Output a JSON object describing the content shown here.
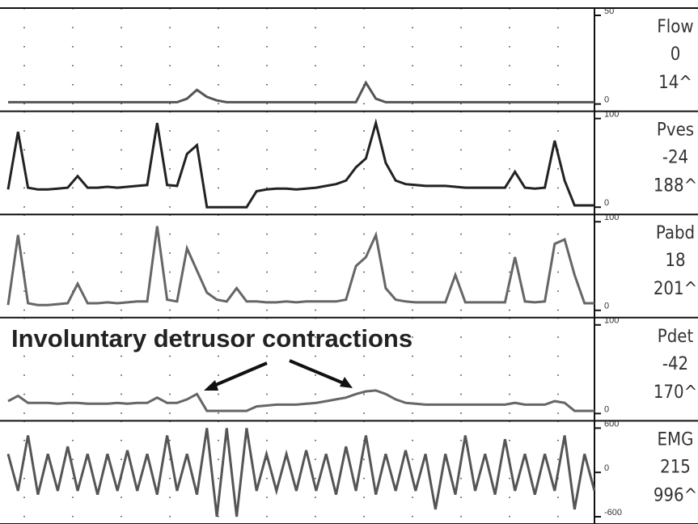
{
  "chart_data": [
    {
      "type": "line",
      "label": "Flow",
      "current": "0",
      "max": "14^",
      "color": "#555",
      "ylim": [
        0,
        50
      ],
      "yticks": [
        0,
        50
      ],
      "values": [
        1,
        1,
        1,
        1,
        1,
        1,
        1,
        1,
        1,
        1,
        1,
        1,
        1,
        1,
        1,
        1,
        1,
        1,
        3,
        8,
        4,
        2,
        1,
        1,
        1,
        1,
        1,
        1,
        1,
        1,
        1,
        1,
        1,
        1,
        1,
        1,
        12,
        3,
        1,
        1,
        1,
        1,
        1,
        1,
        1,
        1,
        1,
        1,
        1,
        1,
        1,
        1,
        1,
        1,
        1,
        1,
        1,
        1,
        1,
        1
      ]
    },
    {
      "type": "line",
      "label": "Pves",
      "current": "-24",
      "max": "188^",
      "color": "#222",
      "ylim": [
        0,
        100
      ],
      "yticks": [
        0,
        100
      ],
      "values": [
        20,
        85,
        22,
        20,
        20,
        21,
        22,
        35,
        22,
        22,
        23,
        22,
        23,
        24,
        25,
        95,
        25,
        24,
        60,
        70,
        0,
        0,
        0,
        0,
        0,
        18,
        20,
        21,
        21,
        20,
        21,
        22,
        24,
        26,
        30,
        45,
        55,
        95,
        50,
        30,
        26,
        25,
        24,
        24,
        24,
        23,
        22,
        22,
        22,
        22,
        22,
        40,
        22,
        21,
        22,
        75,
        30,
        2,
        2,
        2
      ]
    },
    {
      "type": "line",
      "label": "Pabd",
      "current": "18",
      "max": "201^",
      "color": "#666",
      "ylim": [
        0,
        100
      ],
      "yticks": [
        0,
        100
      ],
      "values": [
        6,
        85,
        8,
        6,
        6,
        7,
        8,
        30,
        8,
        8,
        9,
        8,
        9,
        10,
        10,
        95,
        12,
        10,
        70,
        45,
        20,
        12,
        10,
        25,
        10,
        10,
        9,
        9,
        10,
        9,
        10,
        10,
        10,
        10,
        12,
        50,
        60,
        85,
        25,
        12,
        10,
        9,
        9,
        9,
        9,
        40,
        9,
        9,
        9,
        9,
        9,
        60,
        10,
        9,
        10,
        75,
        80,
        40,
        8,
        8
      ]
    },
    {
      "type": "line",
      "label": "Pdet",
      "current": "-42",
      "max": "170^",
      "color": "#666",
      "ylim": [
        0,
        100
      ],
      "yticks": [
        0,
        100
      ],
      "values": [
        14,
        20,
        12,
        12,
        12,
        11,
        12,
        12,
        11,
        11,
        11,
        12,
        11,
        12,
        12,
        18,
        12,
        12,
        16,
        22,
        3,
        3,
        3,
        3,
        3,
        8,
        9,
        10,
        10,
        10,
        11,
        12,
        14,
        16,
        18,
        22,
        25,
        26,
        22,
        16,
        12,
        11,
        10,
        10,
        10,
        10,
        10,
        10,
        10,
        10,
        10,
        12,
        10,
        10,
        10,
        14,
        12,
        3,
        3,
        3
      ]
    },
    {
      "type": "line",
      "label": "EMG",
      "current": "215",
      "max": "996^",
      "color": "#555",
      "ylim": [
        -600,
        600
      ],
      "yticks": [
        -600,
        0,
        600
      ],
      "values": [
        250,
        -250,
        500,
        -300,
        250,
        -250,
        350,
        -250,
        250,
        -300,
        250,
        -250,
        300,
        -250,
        250,
        -300,
        500,
        -250,
        250,
        -300,
        600,
        -600,
        600,
        -600,
        600,
        -250,
        250,
        -250,
        250,
        -250,
        300,
        -250,
        250,
        -300,
        350,
        -250,
        500,
        -300,
        250,
        -250,
        300,
        -250,
        250,
        -500,
        250,
        -300,
        500,
        -250,
        250,
        -300,
        450,
        -250,
        250,
        -300,
        250,
        -250,
        500,
        -500,
        250,
        -250
      ]
    }
  ],
  "annotation": "Involuntary detrusor contractions"
}
